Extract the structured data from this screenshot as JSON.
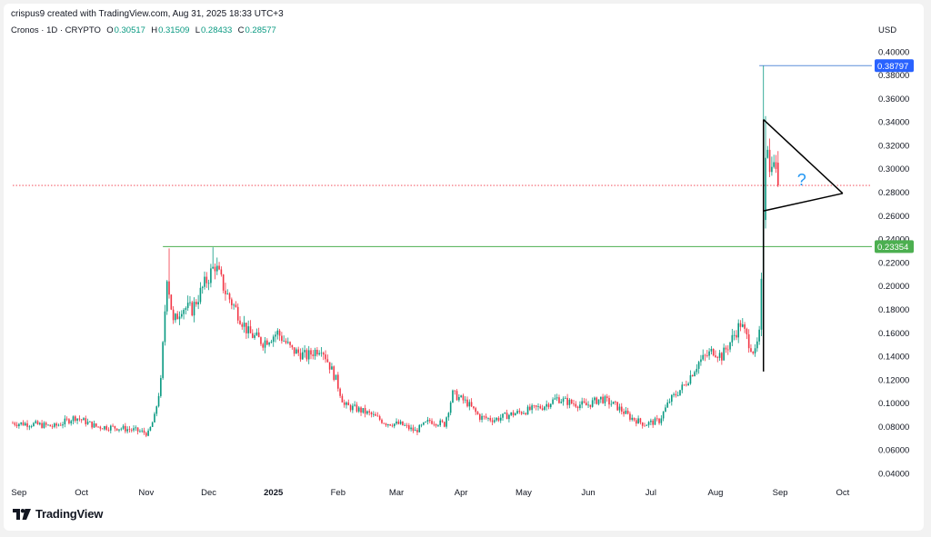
{
  "credit": "crispus9 created with TradingView.com, Aug 31, 2025 18:33 UTC+3",
  "legend": {
    "symbol": "Cronos · 1D · CRYPTO",
    "o_label": "O",
    "o": "0.30517",
    "h_label": "H",
    "h": "0.31509",
    "l_label": "L",
    "l": "0.28433",
    "c_label": "C",
    "c": "0.28577"
  },
  "currency": "USD",
  "brand": "TradingView",
  "colors": {
    "up": "#089981",
    "down": "#f23645",
    "support": "#4caf50",
    "peak": "#2962ff",
    "annotation": "#000000",
    "question": "#2196f3"
  },
  "chart_data": {
    "type": "candlestick",
    "x_ticks": [
      "Sep",
      "Oct",
      "Nov",
      "Dec",
      "2025",
      "Feb",
      "Mar",
      "Apr",
      "May",
      "Jun",
      "Jul",
      "Aug",
      "Sep",
      "Oct"
    ],
    "y_ticks": [
      "0.40000",
      "0.38000",
      "0.36000",
      "0.34000",
      "0.32000",
      "0.30000",
      "0.28000",
      "0.26000",
      "0.24000",
      "0.22000",
      "0.20000",
      "0.18000",
      "0.16000",
      "0.14000",
      "0.12000",
      "0.10000",
      "0.08000",
      "0.06000",
      "0.04000"
    ],
    "ylim": [
      0.04,
      0.4
    ],
    "x_range": [
      "2024-08-29",
      "2025-10-15"
    ],
    "price_labels": [
      {
        "value": "0.38797",
        "kind": "peak"
      },
      {
        "value": "0.23354",
        "kind": "support"
      }
    ],
    "horizontal_lines": [
      {
        "value": 0.38797,
        "from": "2025-08-22",
        "style": "solid",
        "color": "#5b8fd9"
      },
      {
        "value": 0.23354,
        "from": "2024-11-09",
        "style": "solid",
        "color": "#4caf50"
      },
      {
        "value": 0.28577,
        "from": "2024-08-29",
        "style": "dotted",
        "color": "#f23645"
      }
    ],
    "annotation": {
      "type": "pennant",
      "question_mark": "?",
      "pole": {
        "date": "2025-08-24",
        "from": 0.127,
        "to": 0.342
      },
      "tip": {
        "date": "2025-10-01",
        "value": 0.279
      },
      "lower_start": {
        "date": "2025-08-24",
        "value": 0.264
      }
    },
    "anchors": [
      [
        "2024-08-29",
        0.083
      ],
      [
        "2024-09-08",
        0.082
      ],
      [
        "2024-09-18",
        0.08
      ],
      [
        "2024-09-28",
        0.088
      ],
      [
        "2024-10-08",
        0.08
      ],
      [
        "2024-10-18",
        0.079
      ],
      [
        "2024-10-26",
        0.077
      ],
      [
        "2024-11-02",
        0.074
      ],
      [
        "2024-11-05",
        0.088
      ],
      [
        "2024-11-08",
        0.118
      ],
      [
        "2024-11-11",
        0.21
      ],
      [
        "2024-11-14",
        0.168
      ],
      [
        "2024-11-18",
        0.182
      ],
      [
        "2024-11-23",
        0.18
      ],
      [
        "2024-11-28",
        0.198
      ],
      [
        "2024-12-04",
        0.218
      ],
      [
        "2024-12-09",
        0.195
      ],
      [
        "2024-12-14",
        0.18
      ],
      [
        "2024-12-20",
        0.16
      ],
      [
        "2024-12-27",
        0.152
      ],
      [
        "2025-01-03",
        0.16
      ],
      [
        "2025-01-10",
        0.145
      ],
      [
        "2025-01-17",
        0.14
      ],
      [
        "2025-01-24",
        0.148
      ],
      [
        "2025-01-31",
        0.12
      ],
      [
        "2025-02-04",
        0.098
      ],
      [
        "2025-02-10",
        0.095
      ],
      [
        "2025-02-17",
        0.09
      ],
      [
        "2025-02-24",
        0.083
      ],
      [
        "2025-03-03",
        0.082
      ],
      [
        "2025-03-10",
        0.076
      ],
      [
        "2025-03-17",
        0.085
      ],
      [
        "2025-03-24",
        0.082
      ],
      [
        "2025-03-28",
        0.108
      ],
      [
        "2025-04-04",
        0.1
      ],
      [
        "2025-04-10",
        0.088
      ],
      [
        "2025-04-17",
        0.086
      ],
      [
        "2025-04-24",
        0.09
      ],
      [
        "2025-05-01",
        0.093
      ],
      [
        "2025-05-10",
        0.097
      ],
      [
        "2025-05-17",
        0.104
      ],
      [
        "2025-05-24",
        0.1
      ],
      [
        "2025-05-31",
        0.098
      ],
      [
        "2025-06-07",
        0.104
      ],
      [
        "2025-06-14",
        0.098
      ],
      [
        "2025-06-21",
        0.088
      ],
      [
        "2025-06-28",
        0.082
      ],
      [
        "2025-07-05",
        0.085
      ],
      [
        "2025-07-10",
        0.102
      ],
      [
        "2025-07-17",
        0.115
      ],
      [
        "2025-07-24",
        0.135
      ],
      [
        "2025-07-31",
        0.145
      ],
      [
        "2025-08-04",
        0.14
      ],
      [
        "2025-08-09",
        0.155
      ],
      [
        "2025-08-13",
        0.168
      ],
      [
        "2025-08-17",
        0.152
      ],
      [
        "2025-08-20",
        0.142
      ],
      [
        "2025-08-22",
        0.158
      ],
      [
        "2025-08-23",
        0.2
      ],
      [
        "2025-08-24",
        0.262
      ],
      [
        "2025-08-25",
        0.318
      ],
      [
        "2025-08-26",
        0.325
      ],
      [
        "2025-08-27",
        0.295
      ],
      [
        "2025-08-28",
        0.312
      ],
      [
        "2025-08-29",
        0.3
      ],
      [
        "2025-08-30",
        0.305
      ],
      [
        "2025-08-31",
        0.28577
      ]
    ]
  }
}
